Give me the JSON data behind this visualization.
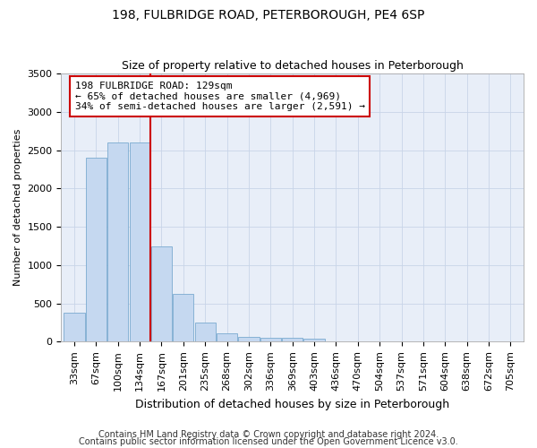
{
  "title": "198, FULBRIDGE ROAD, PETERBOROUGH, PE4 6SP",
  "subtitle": "Size of property relative to detached houses in Peterborough",
  "xlabel": "Distribution of detached houses by size in Peterborough",
  "ylabel": "Number of detached properties",
  "footnote1": "Contains HM Land Registry data © Crown copyright and database right 2024.",
  "footnote2": "Contains public sector information licensed under the Open Government Licence v3.0.",
  "categories": [
    "33sqm",
    "67sqm",
    "100sqm",
    "134sqm",
    "167sqm",
    "201sqm",
    "235sqm",
    "268sqm",
    "302sqm",
    "336sqm",
    "369sqm",
    "403sqm",
    "436sqm",
    "470sqm",
    "504sqm",
    "537sqm",
    "571sqm",
    "604sqm",
    "638sqm",
    "672sqm",
    "705sqm"
  ],
  "bar_values": [
    380,
    2400,
    2600,
    2600,
    1250,
    630,
    250,
    110,
    65,
    55,
    50,
    40,
    0,
    0,
    0,
    0,
    0,
    0,
    0,
    0,
    0
  ],
  "bar_color": "#c5d8f0",
  "bar_edge_color": "#7aaad0",
  "vline_x": 3.5,
  "vline_color": "#cc0000",
  "ylim": [
    0,
    3500
  ],
  "yticks": [
    0,
    500,
    1000,
    1500,
    2000,
    2500,
    3000,
    3500
  ],
  "annotation_text": "198 FULBRIDGE ROAD: 129sqm\n← 65% of detached houses are smaller (4,969)\n34% of semi-detached houses are larger (2,591) →",
  "annotation_box_facecolor": "#ffffff",
  "annotation_box_edgecolor": "#cc0000",
  "grid_color": "#c8d4e8",
  "background_color": "#e8eef8",
  "title_fontsize": 10,
  "subtitle_fontsize": 9,
  "xlabel_fontsize": 9,
  "ylabel_fontsize": 8,
  "tick_fontsize": 8,
  "annot_fontsize": 8,
  "footnote_fontsize": 7
}
